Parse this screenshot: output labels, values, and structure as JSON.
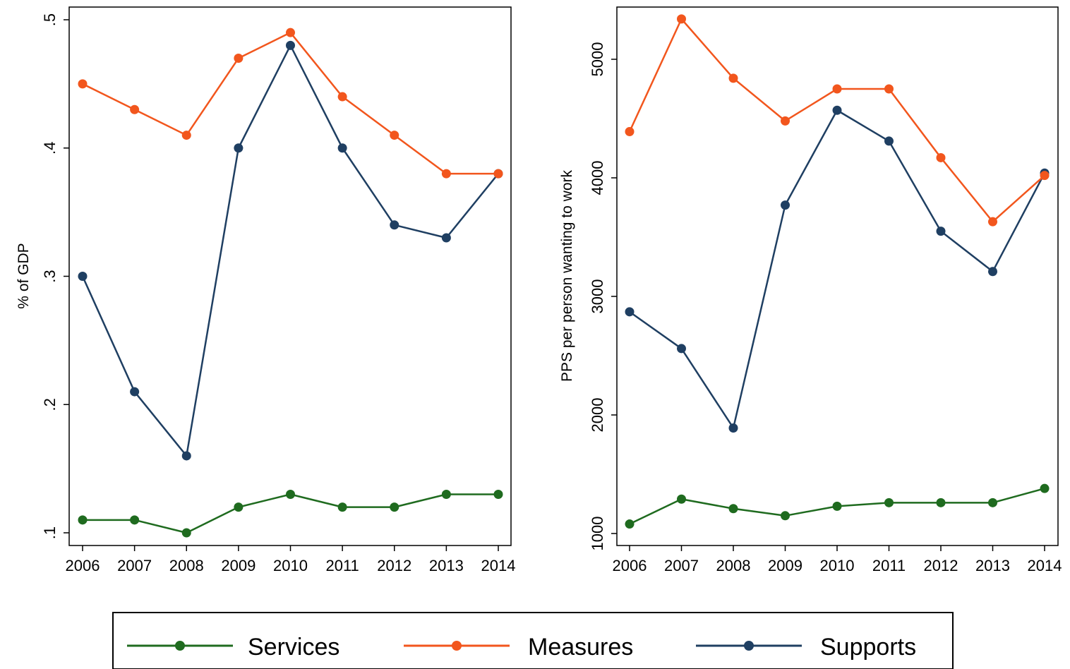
{
  "chart_data": [
    {
      "type": "line",
      "x": [
        2006,
        2007,
        2008,
        2009,
        2010,
        2011,
        2012,
        2013,
        2014
      ],
      "ylabel": "% of GDP",
      "xlabel": "",
      "ylim": [
        0.1,
        0.5
      ],
      "yticks": [
        0.1,
        0.2,
        0.3,
        0.4,
        0.5
      ],
      "ytick_labels": [
        ".1",
        ".2",
        ".3",
        ".4",
        ".5"
      ],
      "series": [
        {
          "name": "Services",
          "values": [
            0.11,
            0.11,
            0.1,
            0.12,
            0.13,
            0.12,
            0.12,
            0.13,
            0.13
          ]
        },
        {
          "name": "Measures",
          "values": [
            0.45,
            0.43,
            0.41,
            0.47,
            0.49,
            0.44,
            0.41,
            0.38,
            0.38
          ]
        },
        {
          "name": "Supports",
          "values": [
            0.3,
            0.21,
            0.16,
            0.4,
            0.48,
            0.4,
            0.34,
            0.33,
            0.38
          ]
        }
      ]
    },
    {
      "type": "line",
      "x": [
        2006,
        2007,
        2008,
        2009,
        2010,
        2011,
        2012,
        2013,
        2014
      ],
      "ylabel": "PPS per person wanting to work",
      "xlabel": "",
      "ylim": [
        1000,
        5000
      ],
      "yticks": [
        1000,
        2000,
        3000,
        4000,
        5000
      ],
      "ytick_labels": [
        "1000",
        "2000",
        "3000",
        "4000",
        "5000"
      ],
      "series": [
        {
          "name": "Services",
          "values": [
            1080,
            1290,
            1210,
            1150,
            1230,
            1260,
            1260,
            1260,
            1380
          ]
        },
        {
          "name": "Measures",
          "values": [
            4390,
            5340,
            4840,
            4480,
            4750,
            4750,
            4170,
            3630,
            4020
          ]
        },
        {
          "name": "Supports",
          "values": [
            2870,
            2560,
            1890,
            3770,
            4570,
            4310,
            3550,
            3210,
            4040
          ]
        }
      ]
    }
  ],
  "legend": {
    "placement": "bottom",
    "items": [
      {
        "name": "Services",
        "color": "#1f6b1f"
      },
      {
        "name": "Measures",
        "color": "#f2561d"
      },
      {
        "name": "Supports",
        "color": "#1f3f62"
      }
    ]
  },
  "colors": {
    "Services": "#1f6b1f",
    "Measures": "#f2561d",
    "Supports": "#1f3f62"
  }
}
